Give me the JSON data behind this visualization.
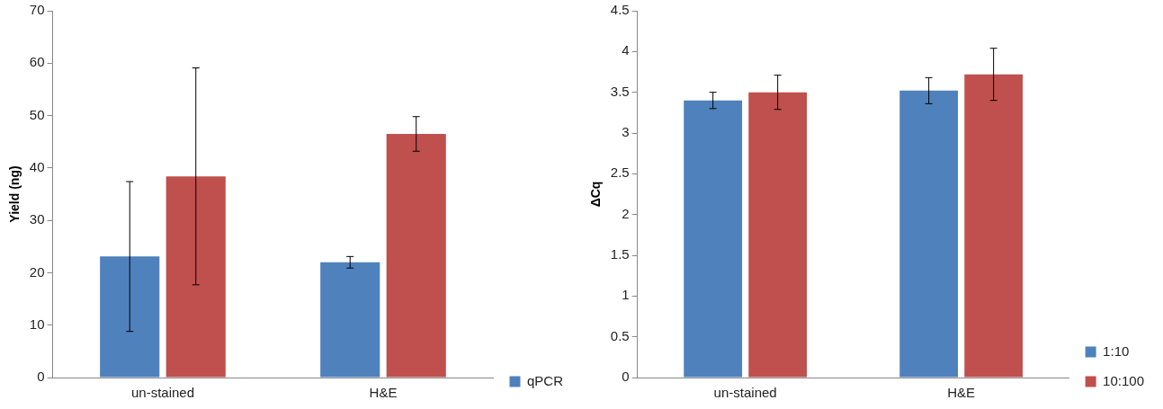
{
  "chart_data": [
    {
      "type": "bar",
      "ylabel": "Yield (ng)",
      "categories": [
        "un-stained",
        "H&E"
      ],
      "ylim": [
        0,
        70
      ],
      "yticks": [
        0,
        10,
        20,
        30,
        40,
        50,
        60,
        70
      ],
      "grid": false,
      "legend": "bottom right",
      "series": [
        {
          "name": "qPCR",
          "color": "#4f81bd",
          "values": [
            23.1,
            22.0
          ],
          "errors": [
            14.3,
            1.1
          ]
        },
        {
          "color": "#c0504d",
          "values": [
            38.4,
            46.5
          ],
          "errors": [
            20.7,
            3.3
          ]
        }
      ]
    },
    {
      "type": "bar",
      "ylabel": "ΔCq",
      "categories": [
        "un-stained",
        "H&E"
      ],
      "ylim": [
        0,
        4.5
      ],
      "yticks": [
        0,
        0.5,
        1,
        1.5,
        2,
        2.5,
        3,
        3.5,
        4,
        4.5
      ],
      "grid": false,
      "legend": "bottom right",
      "series": [
        {
          "name": "1:10",
          "color": "#4f81bd",
          "values": [
            3.4,
            3.52
          ],
          "errors": [
            0.1,
            0.16
          ]
        },
        {
          "name": "10:100",
          "color": "#c0504d",
          "values": [
            3.5,
            3.72
          ],
          "errors": [
            0.21,
            0.32
          ]
        }
      ]
    }
  ]
}
